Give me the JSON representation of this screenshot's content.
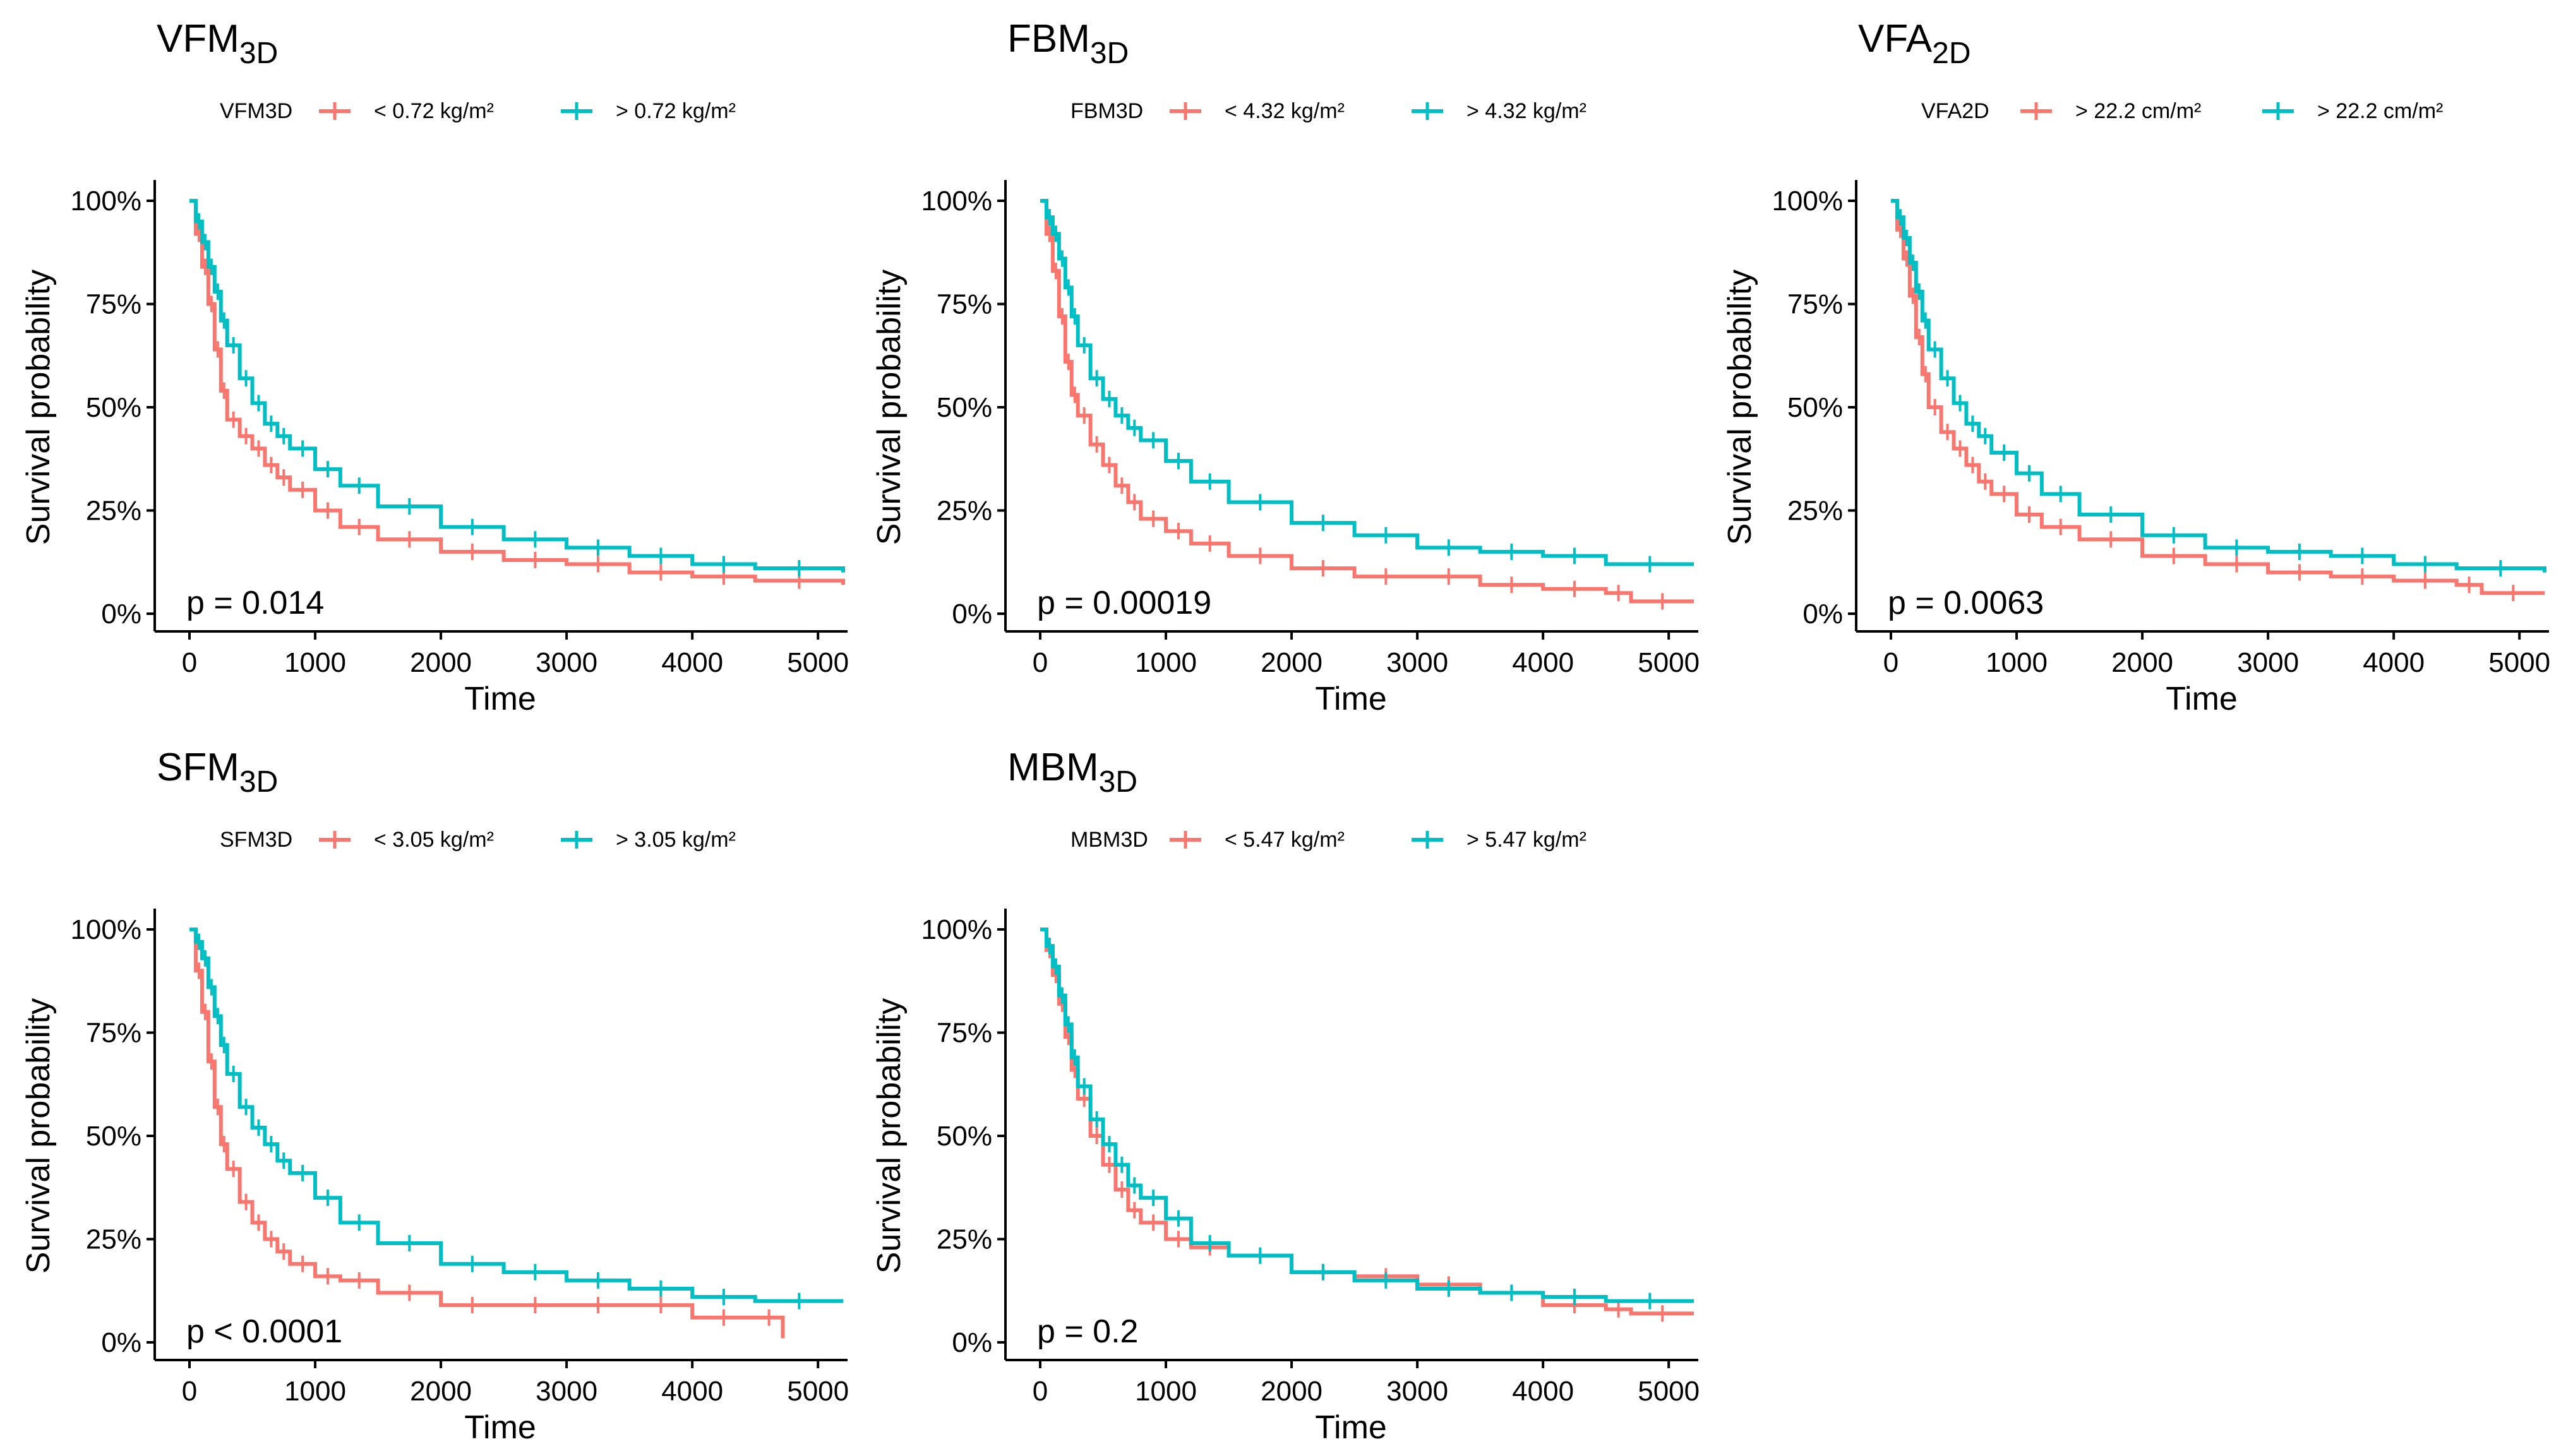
{
  "colors": {
    "low": "#F8766D",
    "high": "#00BFC4",
    "axis": "#000000"
  },
  "shared": {
    "xlabel": "Time",
    "ylabel": "Survival probability",
    "xticks": [
      "0",
      "1000",
      "2000",
      "3000",
      "4000",
      "5000"
    ],
    "yticks": [
      "0%",
      "25%",
      "50%",
      "75%",
      "100%"
    ]
  },
  "chart_data": [
    {
      "type": "line",
      "subtype": "kaplan-meier",
      "title_main": "VFM",
      "title_sub": "3D",
      "legend_title": "VFM3D",
      "xlabel": "Time",
      "ylabel": "Survival probability",
      "xlim": [
        0,
        5200
      ],
      "ylim": [
        0,
        1
      ],
      "p_value": "p = 0.014",
      "series": [
        {
          "name": "<  0.72  kg/m²",
          "color": "#F8766D",
          "x": [
            0,
            50,
            100,
            150,
            200,
            250,
            300,
            400,
            500,
            600,
            700,
            800,
            1000,
            1200,
            1500,
            2000,
            2500,
            3000,
            3500,
            4000,
            4500,
            5200
          ],
          "y": [
            1,
            0.92,
            0.84,
            0.75,
            0.64,
            0.54,
            0.47,
            0.43,
            0.4,
            0.36,
            0.33,
            0.3,
            0.25,
            0.21,
            0.18,
            0.15,
            0.13,
            0.12,
            0.1,
            0.09,
            0.08,
            0.07
          ]
        },
        {
          "name": ">  0.72  kg/m²",
          "color": "#00BFC4",
          "x": [
            0,
            50,
            100,
            150,
            200,
            250,
            300,
            400,
            500,
            600,
            700,
            800,
            1000,
            1200,
            1500,
            2000,
            2500,
            3000,
            3500,
            4000,
            4500,
            5200
          ],
          "y": [
            1,
            0.95,
            0.9,
            0.84,
            0.78,
            0.71,
            0.65,
            0.57,
            0.51,
            0.46,
            0.43,
            0.4,
            0.35,
            0.31,
            0.26,
            0.21,
            0.18,
            0.16,
            0.14,
            0.12,
            0.11,
            0.1
          ]
        }
      ]
    },
    {
      "type": "line",
      "subtype": "kaplan-meier",
      "title_main": "FBM",
      "title_sub": "3D",
      "legend_title": "FBM3D",
      "xlabel": "Time",
      "ylabel": "Survival probability",
      "xlim": [
        0,
        5200
      ],
      "ylim": [
        0,
        1
      ],
      "p_value": "p = 0.00019",
      "series": [
        {
          "name": "<  4.32  kg/m²",
          "color": "#F8766D",
          "x": [
            0,
            50,
            100,
            150,
            200,
            250,
            300,
            400,
            500,
            600,
            700,
            800,
            1000,
            1200,
            1500,
            2000,
            2500,
            3000,
            3500,
            4000,
            4500,
            4700,
            5200
          ],
          "y": [
            1,
            0.92,
            0.83,
            0.72,
            0.61,
            0.53,
            0.48,
            0.41,
            0.36,
            0.31,
            0.27,
            0.23,
            0.2,
            0.17,
            0.14,
            0.11,
            0.09,
            0.09,
            0.07,
            0.06,
            0.05,
            0.03,
            0.03
          ]
        },
        {
          "name": ">  4.32  kg/m²",
          "color": "#00BFC4",
          "x": [
            0,
            50,
            100,
            150,
            200,
            250,
            300,
            400,
            500,
            600,
            700,
            800,
            1000,
            1200,
            1500,
            2000,
            2500,
            3000,
            3500,
            4000,
            4500,
            5200
          ],
          "y": [
            1,
            0.96,
            0.92,
            0.86,
            0.79,
            0.72,
            0.65,
            0.57,
            0.52,
            0.48,
            0.45,
            0.42,
            0.37,
            0.32,
            0.27,
            0.22,
            0.19,
            0.16,
            0.15,
            0.14,
            0.12,
            0.12
          ]
        }
      ]
    },
    {
      "type": "line",
      "subtype": "kaplan-meier",
      "title_main": "VFA",
      "title_sub": "2D",
      "legend_title": "VFA2D",
      "xlabel": "Time",
      "ylabel": "Survival probability",
      "xlim": [
        0,
        5200
      ],
      "ylim": [
        0,
        1
      ],
      "p_value": "p = 0.0063",
      "series": [
        {
          "name": ">  22.2  cm/m²",
          "color": "#F8766D",
          "x": [
            0,
            50,
            100,
            150,
            200,
            250,
            300,
            400,
            500,
            600,
            700,
            800,
            1000,
            1200,
            1500,
            2000,
            2500,
            3000,
            3500,
            4000,
            4500,
            4700,
            5200
          ],
          "y": [
            1,
            0.93,
            0.86,
            0.77,
            0.67,
            0.58,
            0.5,
            0.44,
            0.4,
            0.36,
            0.32,
            0.29,
            0.24,
            0.21,
            0.18,
            0.14,
            0.12,
            0.1,
            0.09,
            0.08,
            0.07,
            0.05,
            0.05
          ]
        },
        {
          "name": ">  22.2  cm/m²",
          "color": "#00BFC4",
          "x": [
            0,
            50,
            100,
            150,
            200,
            250,
            300,
            400,
            500,
            600,
            700,
            800,
            1000,
            1200,
            1500,
            2000,
            2500,
            3000,
            3500,
            4000,
            4500,
            5200
          ],
          "y": [
            1,
            0.96,
            0.91,
            0.85,
            0.78,
            0.71,
            0.64,
            0.57,
            0.51,
            0.46,
            0.43,
            0.39,
            0.34,
            0.29,
            0.24,
            0.19,
            0.16,
            0.15,
            0.14,
            0.12,
            0.11,
            0.1
          ]
        }
      ]
    },
    {
      "type": "line",
      "subtype": "kaplan-meier",
      "title_main": "SFM",
      "title_sub": "3D",
      "legend_title": "SFM3D",
      "xlabel": "Time",
      "ylabel": "Survival probability",
      "xlim": [
        0,
        5200
      ],
      "ylim": [
        0,
        1
      ],
      "p_value": "p < 0.0001",
      "series": [
        {
          "name": "<  3.05  kg/m²",
          "color": "#F8766D",
          "x": [
            0,
            50,
            100,
            150,
            200,
            250,
            300,
            400,
            500,
            600,
            700,
            800,
            1000,
            1200,
            1500,
            2000,
            2500,
            3000,
            3500,
            4000,
            4500,
            4720
          ],
          "y": [
            1,
            0.9,
            0.8,
            0.68,
            0.57,
            0.48,
            0.42,
            0.34,
            0.29,
            0.25,
            0.22,
            0.19,
            0.16,
            0.15,
            0.12,
            0.09,
            0.09,
            0.09,
            0.09,
            0.06,
            0.06,
            0.01
          ]
        },
        {
          "name": ">  3.05  kg/m²",
          "color": "#00BFC4",
          "x": [
            0,
            50,
            100,
            150,
            200,
            250,
            300,
            400,
            500,
            600,
            700,
            800,
            1000,
            1200,
            1500,
            2000,
            2500,
            3000,
            3500,
            4000,
            4500,
            5200
          ],
          "y": [
            1,
            0.97,
            0.93,
            0.86,
            0.79,
            0.72,
            0.65,
            0.57,
            0.52,
            0.48,
            0.44,
            0.41,
            0.35,
            0.29,
            0.24,
            0.19,
            0.17,
            0.15,
            0.13,
            0.11,
            0.1,
            0.1
          ]
        }
      ]
    },
    {
      "type": "line",
      "subtype": "kaplan-meier",
      "title_main": "MBM",
      "title_sub": "3D",
      "legend_title": "MBM3D",
      "xlabel": "Time",
      "ylabel": "Survival probability",
      "xlim": [
        0,
        5200
      ],
      "ylim": [
        0,
        1
      ],
      "p_value": "p = 0.2",
      "series": [
        {
          "name": "<  5.47  kg/m²",
          "color": "#F8766D",
          "x": [
            0,
            50,
            100,
            150,
            200,
            250,
            300,
            400,
            500,
            600,
            700,
            800,
            1000,
            1200,
            1500,
            2000,
            2500,
            3000,
            3500,
            4000,
            4500,
            4700,
            5200
          ],
          "y": [
            1,
            0.95,
            0.89,
            0.82,
            0.74,
            0.66,
            0.59,
            0.5,
            0.43,
            0.37,
            0.32,
            0.29,
            0.25,
            0.23,
            0.21,
            0.17,
            0.16,
            0.14,
            0.12,
            0.09,
            0.08,
            0.07,
            0.07
          ]
        },
        {
          "name": ">  5.47  kg/m²",
          "color": "#00BFC4",
          "x": [
            0,
            50,
            100,
            150,
            200,
            250,
            300,
            400,
            500,
            600,
            700,
            800,
            1000,
            1200,
            1500,
            2000,
            2500,
            3000,
            3500,
            4000,
            4500,
            5200
          ],
          "y": [
            1,
            0.96,
            0.91,
            0.84,
            0.77,
            0.69,
            0.62,
            0.54,
            0.48,
            0.43,
            0.38,
            0.35,
            0.3,
            0.24,
            0.21,
            0.17,
            0.15,
            0.13,
            0.12,
            0.11,
            0.1,
            0.1
          ]
        }
      ]
    }
  ]
}
